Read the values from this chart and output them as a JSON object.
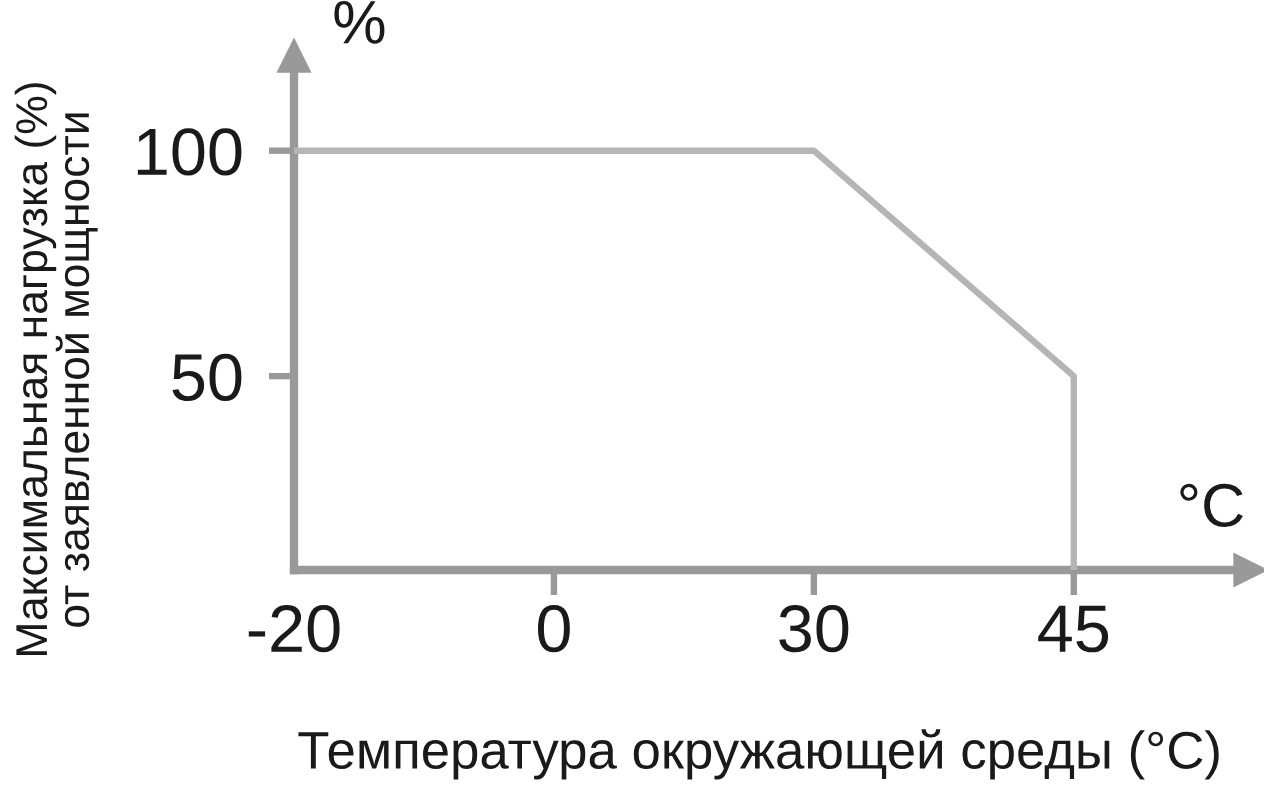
{
  "chart_data": {
    "type": "line",
    "xlabel": "Температура окружающей среды (°C)",
    "ylabel": "Максимальная нагрузка (%)\nот заявленной мощности",
    "annotations": [
      "%",
      "°C"
    ],
    "categories": [
      "-20",
      "0",
      "30",
      "45"
    ],
    "series": [
      {
        "x": [
          "-20",
          "0",
          "30",
          "45",
          "45"
        ],
        "values": [
          100,
          100,
          100,
          50,
          7
        ],
        "color": "#b5b5b5"
      }
    ],
    "ylim": [
      7,
      121
    ],
    "yticks": [
      50,
      100
    ],
    "grid": false,
    "legend": false,
    "marker": "none",
    "line_style": "solid"
  }
}
